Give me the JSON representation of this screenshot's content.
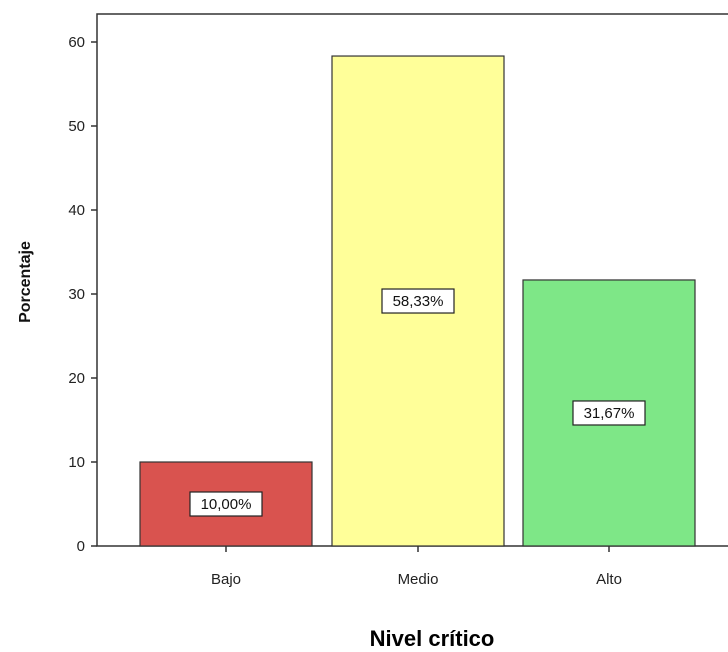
{
  "chart_data": {
    "type": "bar",
    "categories": [
      "Bajo",
      "Medio",
      "Alto"
    ],
    "values": [
      10.0,
      58.33,
      31.67
    ],
    "data_labels": [
      "10,00%",
      "58,33%",
      "31,67%"
    ],
    "bar_colors": [
      "#d9534f",
      "#ffff99",
      "#7ee787"
    ],
    "title": "",
    "xlabel": "Nivel crítico",
    "ylabel": "Porcentaje",
    "ylim": [
      0,
      60
    ],
    "yticks": [
      0,
      10,
      20,
      30,
      40,
      50,
      60
    ],
    "grid": false,
    "legend": "none"
  }
}
